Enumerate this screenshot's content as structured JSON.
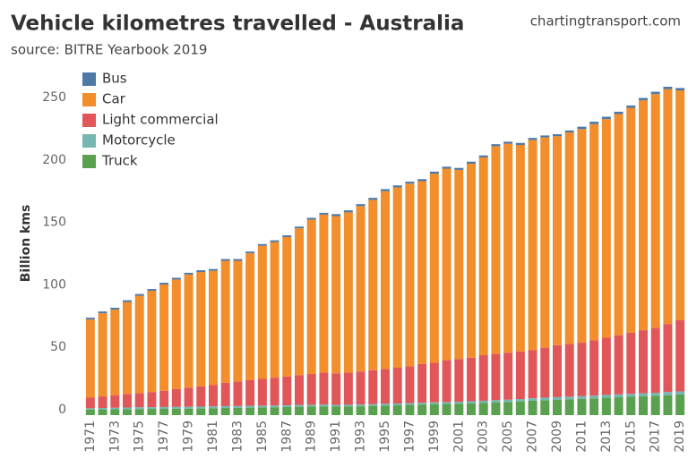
{
  "chart_data": {
    "type": "stacked-bar",
    "title": "Vehicle kilometres travelled - Australia",
    "subtitle": "source: BITRE Yearbook 2019",
    "watermark": "chartingtransport.com",
    "y_label": "Billion kms",
    "categories": [
      "1971",
      null,
      "1973",
      null,
      "1975",
      null,
      "1977",
      null,
      "1979",
      null,
      "1981",
      null,
      "1983",
      null,
      "1985",
      null,
      "1987",
      null,
      "1989",
      null,
      "1991",
      null,
      "1993",
      null,
      "1995",
      null,
      "1997",
      null,
      "1999",
      null,
      "2001",
      null,
      "2003",
      null,
      "2005",
      null,
      "2007",
      null,
      "2009",
      null,
      "2011",
      null,
      "2013",
      null,
      "2015",
      null,
      "2017",
      null,
      "2019"
    ],
    "series": [
      {
        "name": "Bus",
        "color": "#4e79a7",
        "values": [
          1.4,
          1.4,
          1.4,
          1.4,
          1.4,
          1.4,
          1.4,
          1.4,
          1.4,
          1.4,
          1.4,
          1.4,
          1.4,
          1.4,
          1.4,
          1.4,
          1.4,
          1.4,
          1.4,
          1.4,
          1.6,
          1.6,
          1.6,
          1.6,
          1.6,
          1.6,
          1.6,
          1.6,
          1.6,
          1.6,
          1.6,
          1.6,
          1.6,
          1.6,
          1.6,
          1.6,
          1.6,
          1.6,
          1.6,
          1.6,
          1.9,
          1.9,
          1.9,
          1.9,
          1.9,
          1.9,
          1.9,
          1.9,
          1.9
        ]
      },
      {
        "name": "Car",
        "color": "#f28e2b",
        "values": [
          62.6,
          66.6,
          68.6,
          73.6,
          78.1,
          81.1,
          85.1,
          87.6,
          90.6,
          91.6,
          91.6,
          97.6,
          96.6,
          101.6,
          106.6,
          108.6,
          111.6,
          117.6,
          123.6,
          126.6,
          125.9,
          128.4,
          132.4,
          136.4,
          142.4,
          144.4,
          146.4,
          146.4,
          151.4,
          153.4,
          151.4,
          155.4,
          158.4,
          166.4,
          167.4,
          165.4,
          168.4,
          168.4,
          167.4,
          169.4,
          171.1,
          173.1,
          175.1,
          177.1,
          180.1,
          184.1,
          187.1,
          188.1,
          184.1
        ]
      },
      {
        "name": "Light commercial",
        "color": "#e15759",
        "values": [
          8.5,
          9.3,
          10.1,
          10.9,
          11.2,
          12.1,
          13.0,
          14.4,
          15.3,
          16.2,
          17.0,
          18.8,
          19.7,
          20.5,
          21.4,
          22.3,
          23.1,
          23.9,
          24.7,
          25.6,
          25.3,
          25.7,
          26.5,
          27.2,
          27.9,
          28.7,
          29.4,
          31.1,
          31.7,
          33.5,
          34.3,
          34.9,
          36.5,
          37.0,
          37.6,
          38.1,
          38.5,
          40.0,
          41.6,
          42.2,
          42.8,
          44.4,
          45.8,
          47.4,
          49.0,
          50.5,
          52.1,
          54.5,
          57.0
        ]
      },
      {
        "name": "Motorcycle",
        "color": "#76b7b2",
        "values": [
          1.0,
          1.1,
          1.2,
          1.3,
          1.4,
          1.4,
          1.5,
          1.5,
          1.5,
          1.5,
          1.5,
          1.5,
          1.5,
          1.5,
          1.4,
          1.4,
          1.4,
          1.4,
          1.4,
          1.4,
          1.4,
          1.4,
          1.4,
          1.4,
          1.4,
          1.4,
          1.4,
          1.4,
          1.5,
          1.5,
          1.5,
          1.6,
          1.6,
          1.7,
          1.8,
          1.9,
          2.0,
          2.1,
          2.2,
          2.2,
          2.2,
          2.2,
          2.3,
          2.3,
          2.3,
          2.4,
          2.4,
          2.5,
          2.5
        ]
      },
      {
        "name": "Truck",
        "color": "#59a14f",
        "values": [
          4.5,
          4.6,
          4.7,
          4.8,
          4.9,
          5.0,
          5.0,
          5.1,
          5.2,
          5.3,
          5.5,
          5.7,
          5.8,
          6.0,
          6.2,
          6.3,
          6.5,
          6.7,
          6.9,
          7.0,
          6.8,
          6.9,
          7.1,
          7.4,
          7.7,
          7.9,
          8.2,
          8.5,
          8.8,
          9.0,
          9.2,
          9.5,
          9.9,
          10.3,
          10.6,
          11.0,
          11.5,
          11.9,
          12.2,
          12.6,
          13.0,
          13.4,
          13.9,
          14.3,
          14.7,
          15.1,
          15.5,
          16.0,
          16.5
        ]
      }
    ],
    "ylim": [
      0,
      268
    ],
    "yticks": [
      0,
      50,
      100,
      150,
      200,
      250
    ],
    "grid": false,
    "legend": "top-left"
  }
}
